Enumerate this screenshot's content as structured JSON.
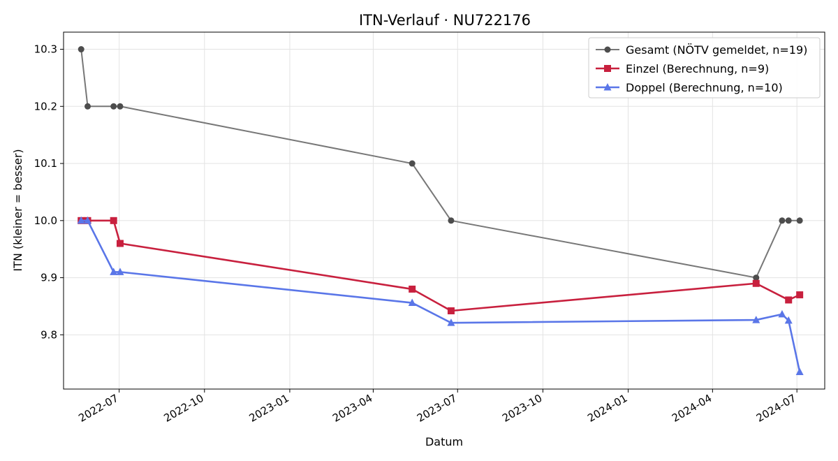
{
  "chart_data": {
    "type": "line",
    "title": "ITN-Verlauf · NU722176",
    "xlabel": "Datum",
    "ylabel": "ITN  (kleiner = besser)",
    "x_axis_type": "date",
    "xlim": [
      "2022-05-02",
      "2024-07-31"
    ],
    "ylim": [
      9.705,
      10.33
    ],
    "x_ticks": [
      "2022-07-01",
      "2022-10-01",
      "2023-01-01",
      "2023-04-01",
      "2023-07-01",
      "2023-10-01",
      "2024-01-01",
      "2024-04-01",
      "2024-07-01"
    ],
    "x_tick_labels": [
      "2022-07",
      "2022-10",
      "2023-01",
      "2023-04",
      "2023-07",
      "2023-10",
      "2024-01",
      "2024-04",
      "2024-07"
    ],
    "y_ticks": [
      9.8,
      9.9,
      10.0,
      10.1,
      10.2,
      10.3
    ],
    "y_tick_labels": [
      "9.8",
      "9.9",
      "10.0",
      "10.1",
      "10.2",
      "10.3"
    ],
    "grid": true,
    "legend_position": "top-right",
    "series": [
      {
        "name": "Gesamt (NÖTV gemeldet, n=19)",
        "color": "#777777",
        "marker_color": "#4d4d4d",
        "marker": "circle",
        "points": [
          {
            "x": "2022-05-21",
            "y": 10.3
          },
          {
            "x": "2022-05-28",
            "y": 10.2
          },
          {
            "x": "2022-06-25",
            "y": 10.2
          },
          {
            "x": "2022-07-02",
            "y": 10.2
          },
          {
            "x": "2023-05-13",
            "y": 10.1
          },
          {
            "x": "2023-06-24",
            "y": 10.0
          },
          {
            "x": "2024-05-18",
            "y": 9.9
          },
          {
            "x": "2024-06-15",
            "y": 10.0
          },
          {
            "x": "2024-06-22",
            "y": 10.0
          },
          {
            "x": "2024-07-04",
            "y": 10.0
          }
        ]
      },
      {
        "name": "Einzel (Berechnung, n=9)",
        "color": "#c8203e",
        "marker_color": "#c8203e",
        "marker": "square",
        "points": [
          {
            "x": "2022-05-21",
            "y": 10.0
          },
          {
            "x": "2022-05-28",
            "y": 10.0
          },
          {
            "x": "2022-06-25",
            "y": 10.0
          },
          {
            "x": "2022-07-02",
            "y": 9.96
          },
          {
            "x": "2023-05-13",
            "y": 9.88
          },
          {
            "x": "2023-06-24",
            "y": 9.842
          },
          {
            "x": "2024-05-18",
            "y": 9.89
          },
          {
            "x": "2024-06-22",
            "y": 9.861
          },
          {
            "x": "2024-07-04",
            "y": 9.87
          }
        ]
      },
      {
        "name": "Doppel (Berechnung, n=10)",
        "color": "#5a76e8",
        "marker_color": "#5a76e8",
        "marker": "triangle",
        "points": [
          {
            "x": "2022-05-21",
            "y": 10.0
          },
          {
            "x": "2022-05-28",
            "y": 10.0
          },
          {
            "x": "2022-06-25",
            "y": 9.91
          },
          {
            "x": "2022-07-02",
            "y": 9.91
          },
          {
            "x": "2023-05-13",
            "y": 9.856
          },
          {
            "x": "2023-06-24",
            "y": 9.821
          },
          {
            "x": "2024-05-18",
            "y": 9.826
          },
          {
            "x": "2024-06-15",
            "y": 9.836
          },
          {
            "x": "2024-06-22",
            "y": 9.825
          },
          {
            "x": "2024-07-04",
            "y": 9.735
          }
        ]
      }
    ]
  }
}
